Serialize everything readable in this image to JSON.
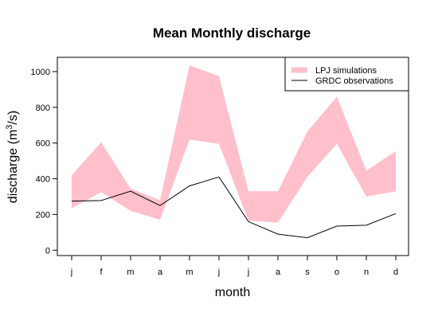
{
  "chart_data": {
    "type": "area",
    "title": "Mean Monthly discharge",
    "xlabel": "month",
    "ylabel_main": "discharge (m",
    "ylabel_sup": "3",
    "ylabel_tail": "/s)",
    "categories": [
      "j",
      "f",
      "m",
      "a",
      "m",
      "j",
      "j",
      "a",
      "s",
      "o",
      "n",
      "d"
    ],
    "yticks": [
      "0",
      "200",
      "400",
      "600",
      "800",
      "1000"
    ],
    "ylim": [
      -30,
      1080
    ],
    "grid": false,
    "legend_position": "top-right",
    "series": [
      {
        "name": "LPJ simulations",
        "kind": "band",
        "color": "#ffc0cb",
        "lower": [
          235,
          325,
          220,
          170,
          620,
          595,
          165,
          155,
          410,
          595,
          300,
          330
        ],
        "upper": [
          420,
          605,
          345,
          280,
          1035,
          975,
          330,
          330,
          665,
          860,
          445,
          555
        ]
      },
      {
        "name": "GRDC observations",
        "kind": "line",
        "color": "#000000",
        "values": [
          275,
          278,
          330,
          250,
          360,
          410,
          160,
          90,
          70,
          135,
          140,
          205
        ]
      }
    ]
  }
}
